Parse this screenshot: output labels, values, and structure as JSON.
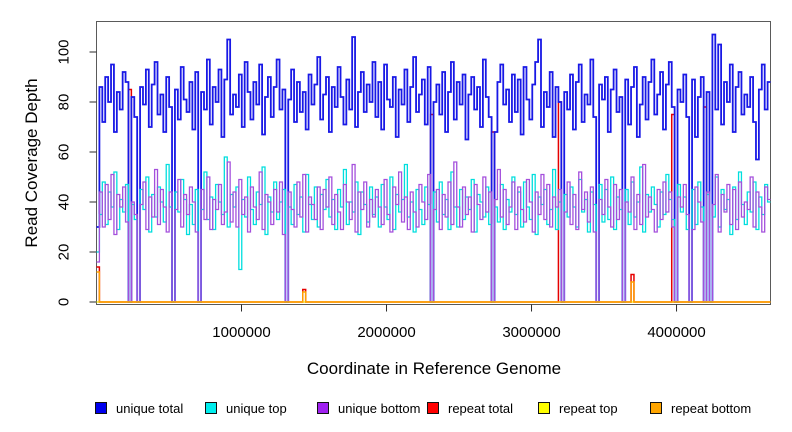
{
  "figure": {
    "background": "#ffffff",
    "plot_border_color": "#5a5a5a",
    "tick_color": "#2a2a2a"
  },
  "chart_data": {
    "type": "line",
    "step": true,
    "title": "",
    "xlabel": "Coordinate in Reference Genome",
    "ylabel": "Read Coverage Depth",
    "xlim": [
      0,
      4648000
    ],
    "ylim": [
      0,
      107
    ],
    "window_size": 20000,
    "n_windows": 232,
    "grid": false,
    "legend_position": "bottom",
    "x_ticks": [
      {
        "value": 1000000,
        "label": "1000000"
      },
      {
        "value": 2000000,
        "label": "2000000"
      },
      {
        "value": 3000000,
        "label": "3000000"
      },
      {
        "value": 4000000,
        "label": "4000000"
      }
    ],
    "y_ticks": [
      {
        "value": 0,
        "label": "0"
      },
      {
        "value": 20,
        "label": "20"
      },
      {
        "value": 40,
        "label": "40"
      },
      {
        "value": 60,
        "label": "60"
      },
      {
        "value": 80,
        "label": "80"
      },
      {
        "value": 100,
        "label": "100"
      }
    ],
    "dropout_positions": [
      220000,
      280000,
      520000,
      700000,
      1300000,
      2300000,
      2730000,
      3200000,
      3440000,
      3630000,
      3980000,
      4080000,
      4180000,
      4220000
    ],
    "draw_order": [
      "repeat_total",
      "unique_total",
      "unique_top",
      "unique_bottom",
      "repeat_top",
      "repeat_bottom"
    ],
    "series": [
      {
        "name": "unique_total",
        "label": "unique total",
        "color": "#1818e6",
        "legend_color": "#0000ee",
        "width": 1.8,
        "values": [
          30,
          86,
          72,
          90,
          80,
          95,
          68,
          84,
          77,
          92,
          88,
          0,
          82,
          74,
          0,
          86,
          79,
          93,
          70,
          87,
          96,
          75,
          83,
          68,
          90,
          78,
          0,
          85,
          73,
          94,
          81,
          76,
          88,
          69,
          92,
          0,
          84,
          77,
          97,
          71,
          86,
          80,
          93,
          66,
          89,
          105,
          75,
          83,
          78,
          91,
          70,
          96,
          84,
          73,
          88,
          79,
          95,
          67,
          82,
          90,
          74,
          86,
          97,
          77,
          85,
          0,
          81,
          93,
          72,
          88,
          76,
          84,
          69,
          91,
          79,
          87,
          98,
          73,
          83,
          90,
          68,
          86,
          78,
          94,
          82,
          71,
          89,
          77,
          106,
          70,
          84,
          92,
          76,
          87,
          80,
          96,
          74,
          88,
          69,
          95,
          81,
          78,
          90,
          66,
          85,
          79,
          93,
          72,
          86,
          98,
          76,
          83,
          89,
          71,
          94,
          0,
          80,
          87,
          75,
          92,
          68,
          84,
          96,
          73,
          88,
          79,
          91,
          65,
          83,
          90,
          77,
          86,
          70,
          97,
          82,
          74,
          0,
          68,
          88,
          95,
          79,
          85,
          72,
          91,
          76,
          89,
          67,
          94,
          81,
          73,
          87,
          96,
          105,
          70,
          84,
          78,
          92,
          66,
          86,
          80,
          0,
          84,
          77,
          91,
          69,
          88,
          95,
          72,
          83,
          79,
          97,
          74,
          0,
          87,
          81,
          90,
          68,
          85,
          93,
          76,
          82,
          0,
          89,
          71,
          86,
          94,
          66,
          79,
          90,
          73,
          88,
          97,
          75,
          83,
          92,
          69,
          87,
          96,
          78,
          0,
          85,
          80,
          91,
          74,
          0,
          89,
          66,
          82,
          90,
          0,
          84,
          0,
          107,
          77,
          103,
          71,
          88,
          80,
          95,
          68,
          86,
          92,
          75,
          83,
          78,
          90,
          72,
          57,
          85,
          95,
          77,
          88
        ]
      },
      {
        "name": "unique_top",
        "label": "unique top",
        "color": "#00dede",
        "legend_color": "#00eeee",
        "width": 1.3,
        "values": [
          20,
          35,
          48,
          31,
          44,
          38,
          52,
          29,
          41,
          36,
          47,
          0,
          39,
          33,
          0,
          45,
          37,
          50,
          28,
          43,
          34,
          46,
          40,
          32,
          55,
          38,
          0,
          44,
          36,
          49,
          41,
          27,
          39,
          31,
          45,
          0,
          37,
          52,
          33,
          42,
          29,
          47,
          40,
          35,
          58,
          30,
          43,
          38,
          46,
          13,
          41,
          34,
          50,
          37,
          31,
          44,
          39,
          54,
          27,
          42,
          36,
          48,
          33,
          40,
          45,
          0,
          38,
          31,
          47,
          35,
          42,
          28,
          51,
          39,
          33,
          46,
          30,
          43,
          37,
          49,
          34,
          41,
          29,
          45,
          38,
          53,
          31,
          40,
          36,
          48,
          27,
          44,
          39,
          32,
          46,
          35,
          42,
          30,
          47,
          38,
          33,
          50,
          29,
          43,
          36,
          41,
          55,
          34,
          40,
          28,
          45,
          37,
          31,
          46,
          39,
          0,
          44,
          32,
          48,
          35,
          41,
          29,
          52,
          38,
          30,
          45,
          33,
          42,
          37,
          49,
          28,
          43,
          40,
          34,
          46,
          31,
          0,
          38,
          32,
          47,
          29,
          41,
          36,
          50,
          35,
          44,
          30,
          48,
          38,
          33,
          51,
          27,
          42,
          39,
          45,
          31,
          37,
          53,
          29,
          40,
          0,
          43,
          34,
          46,
          38,
          30,
          49,
          36,
          41,
          28,
          44,
          39,
          0,
          47,
          32,
          45,
          33,
          50,
          29,
          42,
          37,
          0,
          45,
          31,
          48,
          34,
          40,
          54,
          28,
          43,
          36,
          46,
          39,
          30,
          44,
          35,
          51,
          41,
          33,
          0,
          47,
          36,
          42,
          29,
          0,
          45,
          31,
          48,
          38,
          0,
          43,
          0,
          34,
          50,
          30,
          45,
          37,
          41,
          27,
          46,
          33,
          52,
          39,
          31,
          44,
          36,
          48,
          29,
          42,
          35,
          47,
          40
        ]
      },
      {
        "name": "unique_bottom",
        "label": "unique bottom",
        "color": "#a44fdc",
        "legend_color": "#a020f0",
        "width": 1.3,
        "values": [
          16,
          44,
          30,
          47,
          33,
          51,
          27,
          43,
          38,
          46,
          32,
          0,
          40,
          35,
          0,
          39,
          48,
          29,
          42,
          34,
          53,
          31,
          45,
          38,
          28,
          44,
          0,
          37,
          49,
          30,
          43,
          35,
          46,
          40,
          28,
          0,
          45,
          33,
          50,
          29,
          41,
          37,
          47,
          31,
          36,
          56,
          32,
          44,
          30,
          49,
          35,
          42,
          28,
          46,
          38,
          33,
          52,
          29,
          43,
          40,
          31,
          45,
          36,
          48,
          27,
          0,
          44,
          37,
          30,
          48,
          34,
          51,
          28,
          42,
          39,
          33,
          46,
          29,
          45,
          38,
          50,
          31,
          43,
          36,
          29,
          47,
          40,
          33,
          55,
          28,
          44,
          37,
          48,
          30,
          41,
          34,
          45,
          38,
          31,
          49,
          35,
          28,
          46,
          39,
          52,
          32,
          42,
          29,
          44,
          36,
          30,
          47,
          40,
          33,
          51,
          0,
          37,
          45,
          29,
          43,
          34,
          48,
          31,
          56,
          38,
          30,
          46,
          35,
          42,
          28,
          47,
          39,
          33,
          50,
          36,
          44,
          0,
          41,
          53,
          34,
          45,
          31,
          38,
          48,
          29,
          46,
          37,
          32,
          49,
          40,
          28,
          44,
          35,
          51,
          33,
          47,
          30,
          42,
          38,
          45,
          0,
          36,
          48,
          31,
          43,
          29,
          52,
          37,
          44,
          32,
          46,
          28,
          0,
          41,
          35,
          49,
          38,
          30,
          47,
          33,
          45,
          0,
          40,
          36,
          50,
          29,
          43,
          31,
          55,
          34,
          42,
          37,
          28,
          45,
          33,
          48,
          36,
          44,
          30,
          0,
          42,
          38,
          47,
          35,
          0,
          29,
          46,
          40,
          32,
          0,
          44,
          0,
          39,
          51,
          28,
          43,
          36,
          47,
          31,
          45,
          29,
          48,
          34,
          40,
          37,
          50,
          30,
          44,
          38,
          28,
          46,
          41
        ]
      },
      {
        "name": "repeat_total",
        "label": "repeat total",
        "color": "#e60000",
        "legend_color": "#ff0000",
        "width": 1.5,
        "baseline": 0,
        "spikes": {
          "0": 14,
          "11": 85,
          "71": 5,
          "115": 75,
          "136": 68,
          "159": 80,
          "184": 11,
          "198": 75,
          "209": 78
        }
      },
      {
        "name": "repeat_top",
        "label": "repeat top",
        "color": "#f0f000",
        "legend_color": "#ffff00",
        "width": 1.2,
        "baseline": 0,
        "spikes": {}
      },
      {
        "name": "repeat_bottom",
        "label": "repeat bottom",
        "color": "#ffa500",
        "legend_color": "#ffa500",
        "width": 1.4,
        "baseline": 0,
        "spikes": {
          "0": 12,
          "71": 4,
          "184": 8
        }
      }
    ]
  }
}
